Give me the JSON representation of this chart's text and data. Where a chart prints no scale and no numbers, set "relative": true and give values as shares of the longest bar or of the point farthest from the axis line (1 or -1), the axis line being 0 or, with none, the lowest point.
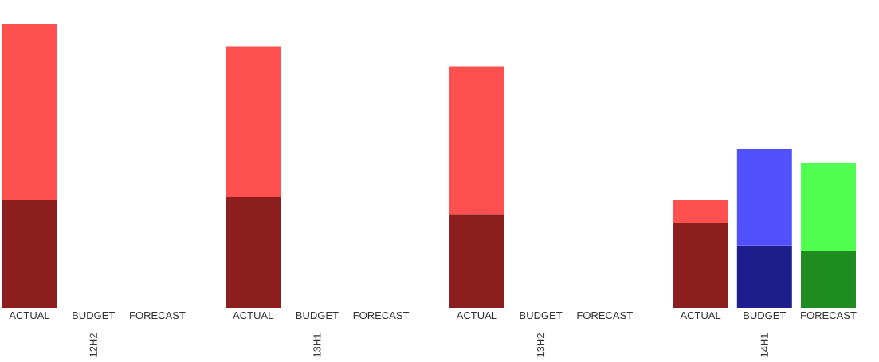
{
  "chart_data": {
    "type": "bar",
    "stacked": true,
    "relative": true,
    "categories": [
      "ACTUAL",
      "BUDGET",
      "FORECAST",
      "ACTUAL",
      "BUDGET",
      "FORECAST",
      "ACTUAL",
      "BUDGET",
      "FORECAST",
      "ACTUAL",
      "BUDGET",
      "FORECAST"
    ],
    "series": [
      {
        "colors": [
          "#8c1e1e",
          null,
          null,
          "#8c1e1e",
          null,
          null,
          "#8c1e1e",
          null,
          null,
          "#8c1e1e",
          "#1e1e8c",
          "#1f8c1f"
        ],
        "values": [
          0.38,
          null,
          null,
          0.39,
          null,
          null,
          0.33,
          null,
          null,
          0.3,
          0.22,
          0.2
        ]
      },
      {
        "colors": [
          "#ff5050",
          null,
          null,
          "#ff5050",
          null,
          null,
          "#ff5050",
          null,
          null,
          "#ff5050",
          "#5050ff",
          "#50ff50"
        ],
        "values": [
          0.62,
          null,
          null,
          0.53,
          null,
          null,
          0.52,
          null,
          null,
          0.08,
          0.34,
          0.31
        ]
      }
    ],
    "annotations": [
      "12H2",
      "13H1",
      "13H2",
      "14H1"
    ]
  }
}
